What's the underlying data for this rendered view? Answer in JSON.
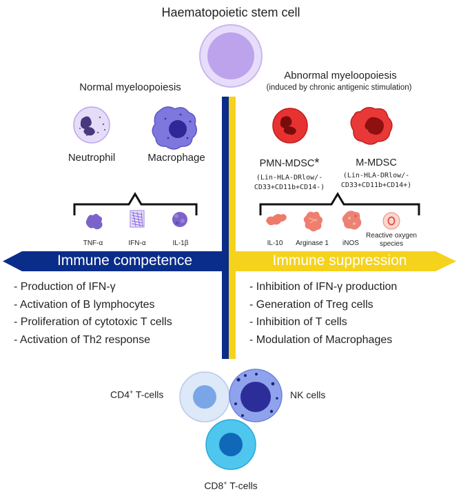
{
  "top": {
    "title": "Haematopoietic stem cell"
  },
  "normal": {
    "heading": "Normal myeloopoiesis",
    "cells": {
      "neutrophil": "Neutrophil",
      "macrophage": "Macrophage"
    },
    "cytokines": [
      "TNF-α",
      "IFN-α",
      "IL-1β"
    ]
  },
  "abnormal": {
    "heading": "Abnormal myeloopoiesis",
    "subheading": "(induced by chronic antigenic stimulation)",
    "pmn": {
      "label": "PMN-MDSC",
      "marker": "*",
      "line1": "(Lin-HLA-DRlow/-",
      "line2": "CD33+CD11b+CD14-)"
    },
    "m": {
      "label": "M-MDSC",
      "line1": "(Lin-HLA-DRlow/-",
      "line2": "CD33+CD11b+CD14+)"
    },
    "mediators": [
      "IL-10",
      "Arginase 1",
      "iNOS",
      "Reactive oxygen",
      "species"
    ]
  },
  "banners": {
    "left": "Immune competence",
    "right": "Immune suppression"
  },
  "competence_list": [
    "Production of IFN-γ",
    "Activation of B lymphocytes",
    "Proliferation of cytotoxic T cells",
    "Activation of Th2 response"
  ],
  "suppression_list": [
    "Inhibition of IFN-γ production",
    "Generation of Treg cells",
    "Inhibition of T cells",
    "Modulation of Macrophages"
  ],
  "tcells": {
    "cd4": {
      "prefix": "CD4",
      "sup": "+",
      "suffix": " T-cells"
    },
    "cd8": {
      "prefix": "CD8",
      "sup": "+",
      "suffix": " T-cells"
    },
    "nk": "NK cells"
  },
  "colors": {
    "navy": "#0a2d8a",
    "yellow": "#f5d21c",
    "stem": "#c6b0ee",
    "neutrophil": "#cdbdf0",
    "macrophage": "#7e78de",
    "mdsc": "#e52a2a",
    "mediator": "#ef7a6a",
    "cd4": "#a9c6ef",
    "nk": "#6a7ee0",
    "cd8": "#48c2ec"
  }
}
